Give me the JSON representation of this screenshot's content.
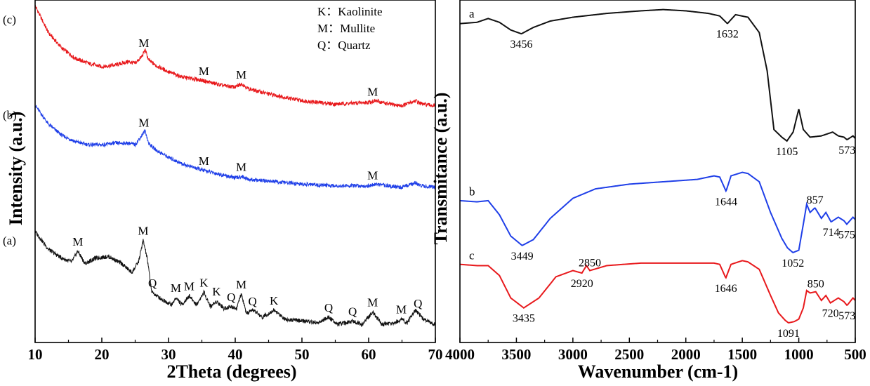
{
  "chart_data": [
    {
      "type": "line",
      "xlabel": "2Theta (degrees)",
      "ylabel": "Intensity (a.u.)",
      "xlim": [
        10,
        70
      ],
      "xticks": [
        "10",
        "20",
        "30",
        "40",
        "50",
        "60",
        "70"
      ],
      "legend": [
        "K：Kaolinite",
        "M：Mullite",
        "Q：Quartz"
      ],
      "grid": false,
      "series": [
        {
          "name": "(c)",
          "color": "#e8191c",
          "x": [
            10,
            12,
            14,
            16,
            18,
            20,
            22,
            24,
            25,
            26,
            26.5,
            27,
            28,
            30,
            32,
            35,
            38,
            40,
            41,
            42,
            45,
            50,
            55,
            60,
            61,
            63,
            65,
            67,
            68,
            70
          ],
          "y": [
            100,
            84,
            75,
            69,
            66,
            64,
            65,
            67,
            66,
            70,
            74,
            68,
            65,
            61,
            58,
            56,
            53,
            52,
            54,
            51,
            48,
            44,
            42,
            43,
            44,
            42,
            41,
            44,
            42,
            41
          ],
          "peaks": [
            {
              "x": 26.3,
              "label": "M"
            },
            {
              "x": 35.3,
              "label": "M"
            },
            {
              "x": 40.9,
              "label": "M"
            },
            {
              "x": 60.6,
              "label": "M"
            }
          ]
        },
        {
          "name": "(b)",
          "color": "#1f3fe8",
          "x": [
            10,
            12,
            14,
            16,
            18,
            20,
            22,
            24,
            25,
            26,
            26.5,
            27,
            28,
            30,
            32,
            35,
            38,
            40,
            41,
            42,
            45,
            50,
            55,
            60,
            61,
            63,
            65,
            67,
            68,
            70
          ],
          "y": [
            80,
            68,
            61,
            57,
            55,
            55,
            56,
            56,
            55,
            61,
            64,
            56,
            52,
            47,
            43,
            39,
            36,
            34,
            35,
            33,
            32,
            30,
            29,
            29,
            30,
            29,
            28,
            31,
            29,
            28
          ],
          "peaks": [
            {
              "x": 26.3,
              "label": "M"
            },
            {
              "x": 35.3,
              "label": "M"
            },
            {
              "x": 40.9,
              "label": "M"
            },
            {
              "x": 60.6,
              "label": "M"
            }
          ]
        },
        {
          "name": "(a)",
          "color": "#111111",
          "x": [
            10,
            12,
            14,
            15.5,
            16.4,
            17.5,
            19,
            21,
            23,
            24.5,
            25.5,
            26.2,
            26.8,
            27.5,
            29,
            30.5,
            31.1,
            32,
            33.1,
            34.2,
            35.3,
            36.3,
            37.2,
            38.3,
            39.4,
            40.2,
            40.9,
            41.7,
            42.8,
            44,
            45.8,
            47.5,
            50,
            52.5,
            54,
            55.5,
            57.6,
            59,
            60.6,
            62,
            64,
            64.9,
            65.8,
            67,
            68.2,
            70
          ],
          "y": [
            55,
            45,
            40,
            38,
            44,
            37,
            40,
            41,
            37,
            32,
            38,
            50,
            40,
            21,
            17,
            14,
            18,
            14,
            19,
            14,
            21,
            13,
            16,
            12,
            13,
            12,
            20,
            9,
            11,
            7,
            11,
            6,
            5,
            4,
            7,
            3,
            5,
            3,
            10,
            3,
            4,
            6,
            4,
            11,
            6,
            3
          ],
          "peaks": [
            {
              "x": 16.4,
              "label": "M"
            },
            {
              "x": 26.2,
              "label": "M"
            },
            {
              "x": 27.6,
              "label": "Q"
            },
            {
              "x": 31.1,
              "label": "M"
            },
            {
              "x": 33.1,
              "label": "M"
            },
            {
              "x": 35.3,
              "label": "K"
            },
            {
              "x": 37.2,
              "label": "K"
            },
            {
              "x": 39.4,
              "label": "Q"
            },
            {
              "x": 40.9,
              "label": "M"
            },
            {
              "x": 42.6,
              "label": "Q"
            },
            {
              "x": 45.8,
              "label": "K"
            },
            {
              "x": 54.0,
              "label": "Q"
            },
            {
              "x": 57.6,
              "label": "Q"
            },
            {
              "x": 60.6,
              "label": "M"
            },
            {
              "x": 64.9,
              "label": "M"
            },
            {
              "x": 67.4,
              "label": "Q"
            }
          ]
        }
      ]
    },
    {
      "type": "line",
      "xlabel": "Wavenumber (cm-1)",
      "ylabel": "Transmitance (a.u.)",
      "xlim": [
        4000,
        500
      ],
      "xticks": [
        "4000",
        "3500",
        "3000",
        "2500",
        "2000",
        "1500",
        "1000",
        "500"
      ],
      "grid": false,
      "series": [
        {
          "name": "a",
          "color": "#111111",
          "x": [
            4000,
            3850,
            3750,
            3650,
            3550,
            3456,
            3350,
            3200,
            3000,
            2700,
            2400,
            2200,
            2000,
            1800,
            1700,
            1632,
            1560,
            1450,
            1350,
            1280,
            1220,
            1150,
            1105,
            1050,
            1000,
            960,
            900,
            800,
            700,
            650,
            600,
            573,
            520,
            500
          ],
          "y": [
            97,
            98,
            101,
            98,
            92,
            89,
            94,
            99,
            102,
            105,
            107,
            108,
            107,
            105,
            103,
            97,
            104,
            102,
            90,
            60,
            14,
            8,
            5,
            12,
            30,
            14,
            8,
            9,
            12,
            9,
            8,
            6,
            9,
            7
          ],
          "labels": [
            {
              "x": 3456,
              "text": "3456"
            },
            {
              "x": 1632,
              "text": "1632"
            },
            {
              "x": 1105,
              "text": "1105"
            },
            {
              "x": 573,
              "text": "573"
            }
          ]
        },
        {
          "name": "b",
          "color": "#1f3fe8",
          "x": [
            4000,
            3850,
            3750,
            3650,
            3550,
            3449,
            3350,
            3200,
            3000,
            2800,
            2500,
            2200,
            1900,
            1750,
            1700,
            1644,
            1600,
            1500,
            1450,
            1350,
            1250,
            1150,
            1100,
            1052,
            1000,
            960,
            930,
            900,
            857,
            800,
            760,
            714,
            650,
            600,
            575,
            520,
            500
          ],
          "y": [
            50,
            49,
            50,
            38,
            20,
            12,
            17,
            35,
            52,
            60,
            64,
            66,
            68,
            71,
            70,
            58,
            71,
            74,
            73,
            66,
            40,
            18,
            10,
            6,
            8,
            30,
            47,
            40,
            44,
            35,
            40,
            32,
            36,
            33,
            30,
            36,
            34
          ],
          "labels": [
            {
              "x": 3449,
              "text": "3449"
            },
            {
              "x": 1644,
              "text": "1644"
            },
            {
              "x": 1052,
              "text": "1052"
            },
            {
              "x": 857,
              "text": "857"
            },
            {
              "x": 714,
              "text": "714"
            },
            {
              "x": 575,
              "text": "575"
            }
          ]
        },
        {
          "name": "c",
          "color": "#e8191c",
          "x": [
            4000,
            3850,
            3750,
            3650,
            3550,
            3435,
            3300,
            3150,
            3000,
            2920,
            2880,
            2850,
            2700,
            2400,
            2000,
            1750,
            1700,
            1646,
            1600,
            1500,
            1450,
            1350,
            1250,
            1180,
            1120,
            1091,
            1040,
            1000,
            960,
            930,
            900,
            850,
            800,
            760,
            720,
            650,
            600,
            573,
            520,
            500
          ],
          "y": [
            47,
            46,
            46,
            38,
            20,
            12,
            20,
            37,
            42,
            40,
            46,
            42,
            46,
            48,
            48,
            48,
            47,
            36,
            47,
            50,
            49,
            43,
            22,
            8,
            2,
            0,
            1,
            3,
            12,
            26,
            24,
            25,
            18,
            22,
            16,
            20,
            17,
            14,
            20,
            18
          ],
          "labels": [
            {
              "x": 3435,
              "text": "3435"
            },
            {
              "x": 2920,
              "text": "2920"
            },
            {
              "x": 2850,
              "text": "2850"
            },
            {
              "x": 1646,
              "text": "1646"
            },
            {
              "x": 1091,
              "text": "1091"
            },
            {
              "x": 850,
              "text": "850"
            },
            {
              "x": 720,
              "text": "720"
            },
            {
              "x": 573,
              "text": "573"
            }
          ]
        }
      ]
    }
  ]
}
